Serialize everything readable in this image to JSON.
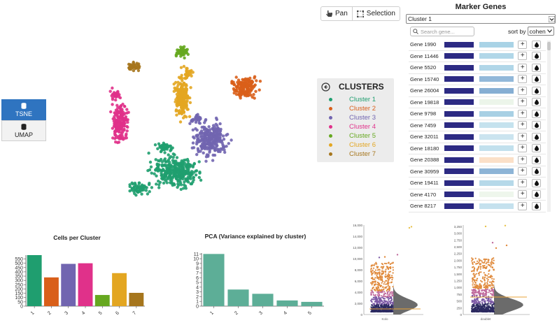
{
  "embedding": {
    "options": [
      {
        "label": "TSNE",
        "active": true,
        "icon": "database-icon"
      },
      {
        "label": "UMAP",
        "active": false,
        "icon": "database-icon"
      }
    ]
  },
  "toolbar": {
    "pan_label": "Pan",
    "selection_label": "Selection"
  },
  "legend": {
    "title": "CLUSTERS",
    "items": [
      {
        "label": "Cluster 1",
        "color": "#1f9e6f"
      },
      {
        "label": "Cluster 2",
        "color": "#d95f1a"
      },
      {
        "label": "Cluster 3",
        "color": "#7165b0"
      },
      {
        "label": "Cluster 4",
        "color": "#e0318a"
      },
      {
        "label": "Cluster 5",
        "color": "#66a820"
      },
      {
        "label": "Cluster 6",
        "color": "#e3a621"
      },
      {
        "label": "Cluster 7",
        "color": "#a6761d"
      }
    ]
  },
  "marker_genes": {
    "title": "Marker Genes",
    "selected_cluster": "Cluster 1",
    "search_placeholder": "Search gene...",
    "sort_label": "sort by",
    "sort_value": "cohen",
    "genes": [
      {
        "name": "Gene 1990",
        "color": "#a9d3e6"
      },
      {
        "name": "Gene 11446",
        "color": "#b1d7e8"
      },
      {
        "name": "Gene 5520",
        "color": "#b1d6e8"
      },
      {
        "name": "Gene 15740",
        "color": "#92b8d9"
      },
      {
        "name": "Gene 26004",
        "color": "#86aed3"
      },
      {
        "name": "Gene 19818",
        "color": "#ecf5ea"
      },
      {
        "name": "Gene 9798",
        "color": "#a8d0e4"
      },
      {
        "name": "Gene 7459",
        "color": "#c5e2ee"
      },
      {
        "name": "Gene 32011",
        "color": "#cbe4ef"
      },
      {
        "name": "Gene 18180",
        "color": "#c2e0ed"
      },
      {
        "name": "Gene 20388",
        "color": "#fbe0c8"
      },
      {
        "name": "Gene 30959",
        "color": "#8db4d6"
      },
      {
        "name": "Gene 19411",
        "color": "#b6d9e9"
      },
      {
        "name": "Gene 4170",
        "color": "#eef6ec"
      },
      {
        "name": "Gene 8217",
        "color": "#c5e1ee"
      }
    ]
  },
  "cells_chart": {
    "title": "Cells per Cluster",
    "chart_data": {
      "type": "bar",
      "title": "Cells per Cluster",
      "categories": [
        "1",
        "2",
        "3",
        "4",
        "5",
        "6",
        "7"
      ],
      "values": [
        595,
        335,
        493,
        500,
        130,
        385,
        155
      ],
      "colors": [
        "#1f9e6f",
        "#d95f1a",
        "#7165b0",
        "#e0318a",
        "#66a820",
        "#e3a621",
        "#a6761d"
      ],
      "yticks": [
        "0",
        "50",
        "100",
        "150",
        "200",
        "250",
        "300",
        "350",
        "400",
        "450",
        "500",
        "550"
      ],
      "ylim": [
        0,
        595
      ]
    }
  },
  "pca_chart": {
    "title": "PCA (Variance explained by cluster)",
    "chart_data": {
      "type": "bar",
      "title": "PCA (Variance explained by cluster)",
      "categories": [
        "1",
        "2",
        "3",
        "4",
        "5"
      ],
      "values": [
        11,
        3.5,
        2.6,
        1.2,
        0.9
      ],
      "color": "#5dae97",
      "yticks": [
        "0",
        "1",
        "2",
        "3",
        "4",
        "5",
        "6",
        "7",
        "8",
        "9",
        "10",
        "11"
      ],
      "ylim": [
        0,
        11.2
      ]
    }
  },
  "violin_left": {
    "yticks": [
      "0",
      "2,000",
      "4,000",
      "6,000",
      "8,000",
      "10,000",
      "12,000",
      "14,000",
      "16,000"
    ],
    "xlabel": "Kolo",
    "ylim": [
      0,
      16000
    ]
  },
  "violin_right": {
    "yticks": [
      "0",
      "250",
      "500",
      "750",
      "1,000",
      "1,250",
      "1,500",
      "1,750",
      "2,000",
      "2,250",
      "2,500",
      "2,750",
      "3,000",
      "3,250"
    ],
    "xlabel": "doublet",
    "ylim": [
      0,
      3300
    ]
  }
}
